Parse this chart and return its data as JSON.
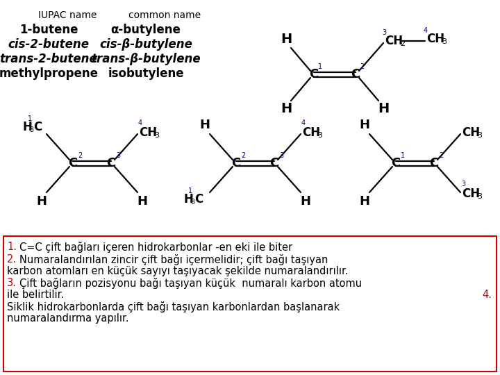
{
  "bg_color": "#ffffff",
  "border_color": "#cc0000",
  "title_left": "IUPAC name",
  "title_right": "common name",
  "rows": [
    [
      "1-butene",
      "α-butylene"
    ],
    [
      "cis-2-butene",
      "cis-β-butylene"
    ],
    [
      "trans-2-butene",
      "trans-β-butylene"
    ],
    [
      "methylpropene",
      "isobutylene"
    ]
  ],
  "note_line1_num": "1.",
  "note_line1_text": "C=C çift bağları içeren hidrokarbonlar -en eki ile biter",
  "note_line2_num": "2.",
  "note_line2_text": "Numaralandırılan zincir çift bağı içermelidir; çift bağı taşıyan",
  "note_line2b_text": "karbon atomları en küçük sayıyı taşıyacak şekilde numaralandırılır.",
  "note_line3_num": "3.",
  "note_line3_text": "Çift bağların pozisyonu bağı taşıyan küçük  numaralı karbon atomu",
  "note_line3b_text": "ile belirtilir.",
  "note_line4_num": "4.",
  "note_line4_text": "Siklik hidrokarbonlarda çift bağı taşıyan karbonlardan başlanarak",
  "note_line4b_text": "numaralandırma yapılır.",
  "red": "#cc0000",
  "black": "#000000",
  "navy": "#000080"
}
